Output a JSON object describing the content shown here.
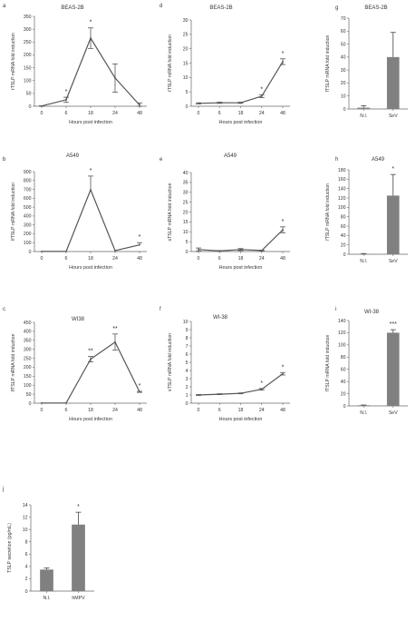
{
  "chart_data": [
    {
      "id": "a",
      "panel_letter": "a",
      "type": "line",
      "title": "BEAS-2B",
      "xlabel": "Hours post infection",
      "ylabel": "tTSLP mRNA fold induction",
      "x": [
        0,
        6,
        18,
        24,
        48
      ],
      "ylim": [
        0,
        350
      ],
      "yticks": [
        0,
        50,
        100,
        150,
        200,
        250,
        300,
        350
      ],
      "series": [
        {
          "values": [
            1,
            25,
            265,
            110,
            5
          ],
          "errors": [
            1,
            10,
            40,
            55,
            8
          ]
        }
      ],
      "significance": [
        {
          "x": 6,
          "label": "*"
        },
        {
          "x": 18,
          "label": "*"
        }
      ],
      "grid": false,
      "error_style": "caps"
    },
    {
      "id": "d",
      "panel_letter": "d",
      "type": "line",
      "title": "BEAS-2B",
      "xlabel": "Hours post infection",
      "ylabel": "tTSLP mRNA fold induction",
      "x": [
        0,
        6,
        18,
        24,
        48
      ],
      "ylim": [
        0,
        30
      ],
      "yticks": [
        0,
        5,
        10,
        15,
        20,
        25,
        30
      ],
      "series": [
        {
          "values": [
            1,
            1.2,
            1.2,
            3.5,
            15.5
          ],
          "errors": [
            0.2,
            0.2,
            0.2,
            0.5,
            1
          ]
        }
      ],
      "significance": [
        {
          "x": 24,
          "label": "*"
        },
        {
          "x": 48,
          "label": "*"
        }
      ],
      "grid": false,
      "error_style": "caps"
    },
    {
      "id": "g",
      "panel_letter": "g",
      "type": "bar",
      "title": "BEAS-2B",
      "ylabel": "fTSLP mRNA fold induction",
      "categories": [
        "N.I.",
        "SeV"
      ],
      "values": [
        1,
        40
      ],
      "errors": [
        1.5,
        19
      ],
      "ylim": [
        0,
        70
      ],
      "yticks": [
        0,
        10,
        20,
        30,
        40,
        50,
        60,
        70
      ],
      "significance": [],
      "bar_color": "#808080"
    },
    {
      "id": "b",
      "panel_letter": "b",
      "type": "line",
      "title": "A549",
      "xlabel": "Hours post infection",
      "ylabel": "lfTSLP mRNA fold induction",
      "x": [
        0,
        6,
        18,
        24,
        48
      ],
      "ylim": [
        0,
        900
      ],
      "yticks": [
        0,
        100,
        200,
        300,
        400,
        500,
        600,
        700,
        800,
        900
      ],
      "series": [
        {
          "values": [
            1,
            1,
            695,
            10,
            75
          ],
          "errors": [
            0,
            0,
            155,
            0,
            25
          ]
        }
      ],
      "significance": [
        {
          "x": 18,
          "label": "*"
        },
        {
          "x": 48,
          "label": "*"
        }
      ],
      "grid": false,
      "error_style": "up"
    },
    {
      "id": "e",
      "panel_letter": "e",
      "type": "line",
      "title": "A549",
      "xlabel": "Hours post infection",
      "ylabel": "sTSLP mRNA fold induction",
      "x": [
        0,
        6,
        18,
        24,
        48
      ],
      "ylim": [
        0,
        40
      ],
      "yticks": [
        0,
        5,
        10,
        15,
        20,
        25,
        30,
        35,
        40
      ],
      "series": [
        {
          "values": [
            1,
            0.3,
            1,
            0.5,
            11
          ],
          "errors": [
            0.8,
            0.2,
            0.5,
            0.2,
            1.5
          ]
        }
      ],
      "significance": [
        {
          "x": 48,
          "label": "*"
        }
      ],
      "grid": false,
      "error_style": "caps"
    },
    {
      "id": "h",
      "panel_letter": "h",
      "type": "bar",
      "title": "A549",
      "ylabel": "fTSLP mRNA fold induction",
      "categories": [
        "N.I.",
        "SeV"
      ],
      "values": [
        1,
        125
      ],
      "errors": [
        0.5,
        45
      ],
      "ylim": [
        0,
        180
      ],
      "yticks": [
        0,
        20,
        40,
        60,
        80,
        100,
        120,
        140,
        160,
        180
      ],
      "significance": [
        {
          "index": 1,
          "label": "*"
        }
      ],
      "bar_color": "#808080"
    },
    {
      "id": "c",
      "panel_letter": "c",
      "type": "line",
      "title": "WI38",
      "xlabel": "Hours post infection",
      "ylabel": "lfTSLP mRNA fold induction",
      "x": [
        0,
        6,
        18,
        24,
        48
      ],
      "ylim": [
        0,
        450
      ],
      "yticks": [
        0,
        50,
        100,
        150,
        200,
        250,
        300,
        350,
        400,
        450
      ],
      "series": [
        {
          "values": [
            1,
            1,
            245,
            340,
            63
          ],
          "errors": [
            0,
            0,
            15,
            45,
            3
          ]
        }
      ],
      "significance": [
        {
          "x": 18,
          "label": "**"
        },
        {
          "x": 24,
          "label": "**"
        },
        {
          "x": 48,
          "label": "*"
        }
      ],
      "grid": false,
      "error_style": "caps"
    },
    {
      "id": "f",
      "panel_letter": "f",
      "type": "line",
      "title": "WI-38",
      "xlabel": "Hours post infection",
      "ylabel": "sTSLP mRNA fold induction",
      "x": [
        0,
        6,
        18,
        24,
        48
      ],
      "ylim": [
        0,
        10
      ],
      "yticks": [
        0,
        1,
        2,
        3,
        4,
        5,
        6,
        7,
        8,
        9,
        10
      ],
      "series": [
        {
          "values": [
            1,
            1.1,
            1.2,
            1.7,
            3.6
          ],
          "errors": [
            0.05,
            0.05,
            0.05,
            0.1,
            0.15
          ]
        }
      ],
      "significance": [
        {
          "x": 24,
          "label": "*"
        },
        {
          "x": 48,
          "label": "*"
        }
      ],
      "grid": false,
      "error_style": "caps"
    },
    {
      "id": "i",
      "panel_letter": "i",
      "type": "bar",
      "title": "WI-38",
      "ylabel": "fTSLP mRNA fold induction",
      "categories": [
        "N.I.",
        "SeV"
      ],
      "values": [
        1,
        120
      ],
      "errors": [
        0.5,
        5
      ],
      "ylim": [
        0,
        140
      ],
      "yticks": [
        0,
        20,
        40,
        60,
        80,
        100,
        120,
        140
      ],
      "significance": [
        {
          "index": 1,
          "label": "***"
        }
      ],
      "bar_color": "#808080"
    },
    {
      "id": "j",
      "panel_letter": "j",
      "type": "bar",
      "title": "",
      "ylabel": "TSLP secretion (pg/mL)",
      "categories": [
        "N.I.",
        "hMPV"
      ],
      "values": [
        3.5,
        10.8
      ],
      "errors": [
        0.25,
        2
      ],
      "ylim": [
        0,
        14
      ],
      "yticks": [
        0,
        2,
        4,
        6,
        8,
        10,
        12,
        14
      ],
      "significance": [
        {
          "index": 1,
          "label": "*"
        }
      ],
      "bar_color": "#808080"
    }
  ]
}
